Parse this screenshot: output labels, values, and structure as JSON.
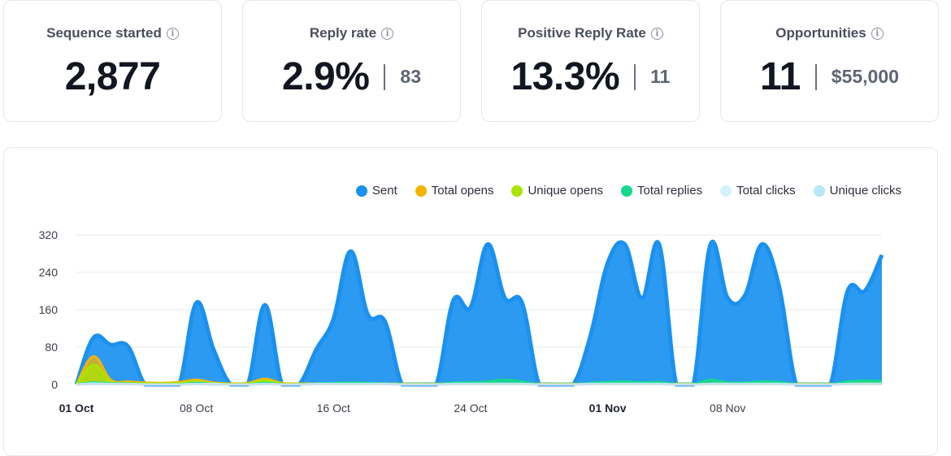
{
  "kpis": [
    {
      "title": "Sequence started",
      "value": "2,877",
      "secondary": ""
    },
    {
      "title": "Reply rate",
      "value": "2.9%",
      "secondary": "83"
    },
    {
      "title": "Positive Reply Rate",
      "value": "13.3%",
      "secondary": "11"
    },
    {
      "title": "Opportunities",
      "value": "11",
      "secondary": "$55,000"
    }
  ],
  "icons": {
    "info": "info-icon"
  },
  "colors": {
    "sent": "#1a91f0",
    "total_opens": "#f5b400",
    "unique_opens": "#a8e400",
    "total_replies": "#14d98a",
    "total_clicks": "#d4f2fa",
    "unique_clicks": "#b5e7f4"
  },
  "chart_data": {
    "type": "area",
    "legend_position": "top-right",
    "grid": true,
    "ylim": [
      0,
      320
    ],
    "y_ticks": [
      "320",
      "240",
      "160",
      "80",
      "0"
    ],
    "x_ticks": [
      {
        "label": "01 Oct",
        "bold": true,
        "day": 0
      },
      {
        "label": "08 Oct",
        "bold": false,
        "day": 7
      },
      {
        "label": "16 Oct",
        "bold": false,
        "day": 15
      },
      {
        "label": "24 Oct",
        "bold": false,
        "day": 23
      },
      {
        "label": "01 Nov",
        "bold": true,
        "day": 31
      },
      {
        "label": "08 Nov",
        "bold": false,
        "day": 38
      }
    ],
    "series": [
      {
        "name": "Sent",
        "color_key": "sent",
        "points": [
          [
            0,
            0
          ],
          [
            1,
            100
          ],
          [
            2,
            85
          ],
          [
            3,
            82
          ],
          [
            4,
            0
          ],
          [
            5,
            0
          ],
          [
            6,
            0
          ],
          [
            7,
            175
          ],
          [
            8,
            75
          ],
          [
            9,
            0
          ],
          [
            10,
            0
          ],
          [
            11,
            170
          ],
          [
            12,
            0
          ],
          [
            13,
            0
          ],
          [
            14,
            75
          ],
          [
            15,
            140
          ],
          [
            16,
            285
          ],
          [
            17,
            150
          ],
          [
            18,
            135
          ],
          [
            19,
            0
          ],
          [
            20,
            0
          ],
          [
            21,
            0
          ],
          [
            22,
            180
          ],
          [
            23,
            165
          ],
          [
            24,
            300
          ],
          [
            25,
            185
          ],
          [
            26,
            175
          ],
          [
            27,
            0
          ],
          [
            28,
            0
          ],
          [
            29,
            0
          ],
          [
            30,
            105
          ],
          [
            31,
            260
          ],
          [
            32,
            300
          ],
          [
            33,
            185
          ],
          [
            34,
            300
          ],
          [
            35,
            0
          ],
          [
            36,
            0
          ],
          [
            37,
            300
          ],
          [
            38,
            185
          ],
          [
            39,
            190
          ],
          [
            40,
            300
          ],
          [
            41,
            210
          ],
          [
            42,
            0
          ],
          [
            43,
            0
          ],
          [
            44,
            0
          ],
          [
            45,
            200
          ],
          [
            46,
            200
          ],
          [
            47,
            277
          ]
        ]
      },
      {
        "name": "Total opens",
        "color_key": "total_opens",
        "points": [
          [
            0,
            0
          ],
          [
            1,
            60
          ],
          [
            2,
            10
          ],
          [
            3,
            6
          ],
          [
            4,
            4
          ],
          [
            5,
            3
          ],
          [
            6,
            5
          ],
          [
            7,
            10
          ],
          [
            8,
            4
          ],
          [
            9,
            2
          ],
          [
            10,
            3
          ],
          [
            11,
            12
          ],
          [
            12,
            3
          ],
          [
            13,
            2
          ],
          [
            14,
            2
          ],
          [
            15,
            2
          ],
          [
            16,
            3
          ],
          [
            17,
            2
          ],
          [
            18,
            2
          ],
          [
            19,
            1
          ],
          [
            20,
            1
          ],
          [
            21,
            1
          ],
          [
            22,
            3
          ],
          [
            23,
            3
          ],
          [
            24,
            3
          ],
          [
            25,
            2
          ],
          [
            26,
            2
          ],
          [
            27,
            1
          ],
          [
            28,
            1
          ],
          [
            29,
            1
          ],
          [
            30,
            1
          ],
          [
            31,
            2
          ],
          [
            32,
            3
          ],
          [
            33,
            2
          ],
          [
            34,
            2
          ],
          [
            35,
            1
          ],
          [
            36,
            1
          ],
          [
            37,
            2
          ],
          [
            38,
            2
          ],
          [
            39,
            2
          ],
          [
            40,
            2
          ],
          [
            41,
            2
          ],
          [
            42,
            1
          ],
          [
            43,
            1
          ],
          [
            44,
            1
          ],
          [
            45,
            2
          ],
          [
            46,
            3
          ],
          [
            47,
            3
          ]
        ]
      },
      {
        "name": "Unique opens",
        "color_key": "unique_opens",
        "points": [
          [
            0,
            0
          ],
          [
            1,
            42
          ],
          [
            2,
            6
          ],
          [
            3,
            3
          ],
          [
            4,
            2
          ],
          [
            5,
            2
          ],
          [
            6,
            3
          ],
          [
            7,
            6
          ],
          [
            8,
            2
          ],
          [
            9,
            1
          ],
          [
            10,
            2
          ],
          [
            11,
            8
          ],
          [
            12,
            2
          ],
          [
            13,
            1
          ],
          [
            14,
            1
          ],
          [
            15,
            1
          ],
          [
            16,
            2
          ],
          [
            17,
            1
          ],
          [
            18,
            1
          ],
          [
            19,
            1
          ],
          [
            20,
            1
          ],
          [
            21,
            1
          ],
          [
            22,
            2
          ],
          [
            23,
            2
          ],
          [
            24,
            2
          ],
          [
            25,
            1
          ],
          [
            26,
            1
          ],
          [
            27,
            1
          ],
          [
            28,
            1
          ],
          [
            29,
            1
          ],
          [
            30,
            1
          ],
          [
            31,
            1
          ],
          [
            32,
            2
          ],
          [
            33,
            1
          ],
          [
            34,
            1
          ],
          [
            35,
            1
          ],
          [
            36,
            1
          ],
          [
            37,
            1
          ],
          [
            38,
            1
          ],
          [
            39,
            1
          ],
          [
            40,
            1
          ],
          [
            41,
            1
          ],
          [
            42,
            1
          ],
          [
            43,
            1
          ],
          [
            44,
            1
          ],
          [
            45,
            1
          ],
          [
            46,
            2
          ],
          [
            47,
            2
          ]
        ]
      },
      {
        "name": "Total replies",
        "color_key": "total_replies",
        "points": [
          [
            0,
            0
          ],
          [
            1,
            4
          ],
          [
            2,
            2
          ],
          [
            3,
            2
          ],
          [
            4,
            0
          ],
          [
            5,
            0
          ],
          [
            6,
            0
          ],
          [
            7,
            3
          ],
          [
            8,
            1
          ],
          [
            9,
            0
          ],
          [
            10,
            0
          ],
          [
            11,
            3
          ],
          [
            12,
            0
          ],
          [
            13,
            0
          ],
          [
            14,
            2
          ],
          [
            15,
            3
          ],
          [
            16,
            4
          ],
          [
            17,
            3
          ],
          [
            18,
            2
          ],
          [
            19,
            0
          ],
          [
            20,
            0
          ],
          [
            21,
            0
          ],
          [
            22,
            4
          ],
          [
            23,
            4
          ],
          [
            24,
            6
          ],
          [
            25,
            10
          ],
          [
            26,
            6
          ],
          [
            27,
            0
          ],
          [
            28,
            0
          ],
          [
            29,
            0
          ],
          [
            30,
            3
          ],
          [
            31,
            5
          ],
          [
            32,
            6
          ],
          [
            33,
            4
          ],
          [
            34,
            5
          ],
          [
            35,
            0
          ],
          [
            36,
            0
          ],
          [
            37,
            10
          ],
          [
            38,
            4
          ],
          [
            39,
            4
          ],
          [
            40,
            6
          ],
          [
            41,
            5
          ],
          [
            42,
            0
          ],
          [
            43,
            0
          ],
          [
            44,
            0
          ],
          [
            45,
            6
          ],
          [
            46,
            8
          ],
          [
            47,
            7
          ]
        ]
      },
      {
        "name": "Total clicks",
        "color_key": "total_clicks",
        "points": [
          [
            0,
            0
          ],
          [
            1,
            2
          ],
          [
            2,
            1
          ],
          [
            3,
            1
          ],
          [
            4,
            0
          ],
          [
            5,
            0
          ],
          [
            6,
            0
          ],
          [
            7,
            1
          ],
          [
            8,
            1
          ],
          [
            9,
            0
          ],
          [
            10,
            0
          ],
          [
            11,
            1
          ],
          [
            12,
            0
          ],
          [
            13,
            0
          ],
          [
            14,
            1
          ],
          [
            15,
            1
          ],
          [
            16,
            1
          ],
          [
            17,
            1
          ],
          [
            18,
            1
          ],
          [
            19,
            0
          ],
          [
            20,
            0
          ],
          [
            21,
            0
          ],
          [
            22,
            1
          ],
          [
            23,
            1
          ],
          [
            24,
            1
          ],
          [
            25,
            1
          ],
          [
            26,
            1
          ],
          [
            27,
            0
          ],
          [
            28,
            0
          ],
          [
            29,
            0
          ],
          [
            30,
            1
          ],
          [
            31,
            1
          ],
          [
            32,
            1
          ],
          [
            33,
            1
          ],
          [
            34,
            1
          ],
          [
            35,
            0
          ],
          [
            36,
            0
          ],
          [
            37,
            1
          ],
          [
            38,
            1
          ],
          [
            39,
            1
          ],
          [
            40,
            1
          ],
          [
            41,
            1
          ],
          [
            42,
            0
          ],
          [
            43,
            0
          ],
          [
            44,
            0
          ],
          [
            45,
            1
          ],
          [
            46,
            1
          ],
          [
            47,
            1
          ]
        ]
      },
      {
        "name": "Unique clicks",
        "color_key": "unique_clicks",
        "points": [
          [
            0,
            0
          ],
          [
            1,
            1
          ],
          [
            2,
            1
          ],
          [
            3,
            1
          ],
          [
            4,
            0
          ],
          [
            5,
            0
          ],
          [
            6,
            0
          ],
          [
            7,
            1
          ],
          [
            8,
            0
          ],
          [
            9,
            0
          ],
          [
            10,
            0
          ],
          [
            11,
            1
          ],
          [
            12,
            0
          ],
          [
            13,
            0
          ],
          [
            14,
            1
          ],
          [
            15,
            1
          ],
          [
            16,
            1
          ],
          [
            17,
            1
          ],
          [
            18,
            1
          ],
          [
            19,
            0
          ],
          [
            20,
            0
          ],
          [
            21,
            0
          ],
          [
            22,
            1
          ],
          [
            23,
            1
          ],
          [
            24,
            1
          ],
          [
            25,
            1
          ],
          [
            26,
            1
          ],
          [
            27,
            0
          ],
          [
            28,
            0
          ],
          [
            29,
            0
          ],
          [
            30,
            1
          ],
          [
            31,
            1
          ],
          [
            32,
            1
          ],
          [
            33,
            1
          ],
          [
            34,
            1
          ],
          [
            35,
            0
          ],
          [
            36,
            0
          ],
          [
            37,
            1
          ],
          [
            38,
            1
          ],
          [
            39,
            1
          ],
          [
            40,
            1
          ],
          [
            41,
            1
          ],
          [
            42,
            0
          ],
          [
            43,
            0
          ],
          [
            44,
            0
          ],
          [
            45,
            1
          ],
          [
            46,
            1
          ],
          [
            47,
            1
          ]
        ]
      }
    ]
  }
}
